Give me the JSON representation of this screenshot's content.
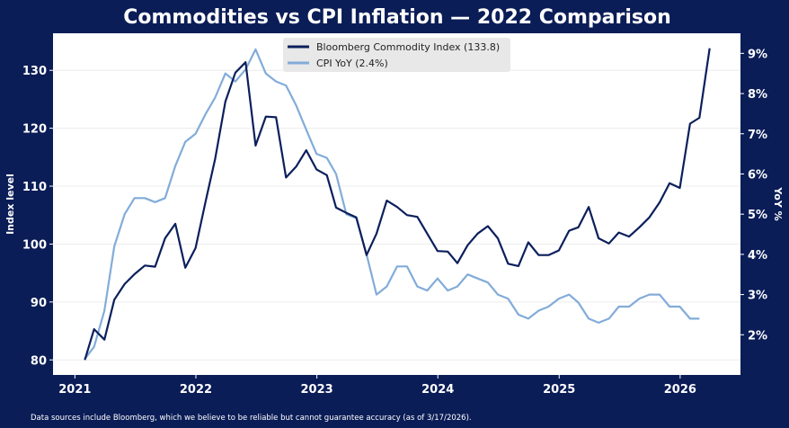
{
  "chart_data": {
    "type": "line",
    "title": "Commodities vs CPI Inflation — 2022 Comparison",
    "ylabel": "Index level",
    "y2label": "YoY %",
    "footnote": "Data sources include Bloomberg, which we believe to be reliable but cannot guarantee accuracy (as of 3/17/2026).",
    "xlim": [
      "2020-10-27",
      "2026-07-02"
    ],
    "ylim": [
      77.4,
      136.4
    ],
    "y2lim": [
      1.0,
      9.5
    ],
    "xticks": [
      "2021",
      "2022",
      "2023",
      "2024",
      "2025",
      "2026"
    ],
    "yticks": [
      "80",
      "90",
      "100",
      "110",
      "120",
      "130"
    ],
    "y2ticks": [
      "2%",
      "3%",
      "4%",
      "5%",
      "6%",
      "7%",
      "8%",
      "9%"
    ],
    "grid": "horizontal",
    "legend": "top-center",
    "start_month": "2021-01",
    "series": [
      {
        "name": "Bloomberg Commodity Index (133.8)",
        "axis": "left",
        "color": "#0b1f5c",
        "values": [
          80.0,
          85.3,
          83.5,
          90.4,
          93.1,
          94.8,
          96.3,
          96.1,
          101.0,
          103.5,
          95.9,
          99.3,
          107.5,
          114.7,
          124.6,
          129.6,
          131.4,
          117.0,
          122.0,
          121.9,
          111.5,
          113.4,
          116.2,
          112.9,
          111.9,
          106.3,
          105.4,
          104.6,
          98.1,
          101.8,
          107.5,
          106.4,
          105.0,
          104.7,
          101.8,
          98.8,
          98.7,
          96.7,
          99.8,
          101.8,
          103.1,
          101.0,
          96.6,
          96.2,
          100.3,
          98.1,
          98.1,
          98.9,
          102.3,
          102.9,
          106.4,
          101.0,
          100.1,
          102.0,
          101.3,
          102.9,
          104.6,
          107.2,
          110.5,
          109.7,
          120.8,
          121.8,
          133.8
        ]
      },
      {
        "name": "CPI YoY (2.4%)",
        "axis": "right",
        "color": "#82acd9",
        "values": [
          1.4,
          1.7,
          2.6,
          4.2,
          5.0,
          5.4,
          5.4,
          5.3,
          5.4,
          6.2,
          6.8,
          7.0,
          7.5,
          7.9,
          8.5,
          8.3,
          8.6,
          9.1,
          8.5,
          8.3,
          8.2,
          7.7,
          7.1,
          6.5,
          6.4,
          6.0,
          5.0,
          4.9,
          4.0,
          3.0,
          3.2,
          3.7,
          3.7,
          3.2,
          3.1,
          3.4,
          3.1,
          3.2,
          3.5,
          3.4,
          3.3,
          3.0,
          2.9,
          2.5,
          2.4,
          2.6,
          2.7,
          2.9,
          3.0,
          2.8,
          2.4,
          2.3,
          2.4,
          2.7,
          2.7,
          2.9,
          3.0,
          3.0,
          2.7,
          2.7,
          2.4,
          2.4
        ]
      }
    ]
  }
}
